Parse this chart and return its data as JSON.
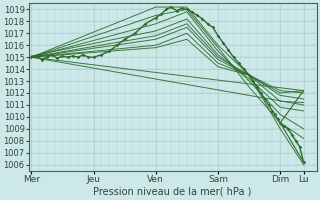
{
  "xlabel": "Pression niveau de la mer( hPa )",
  "bg_color": "#cce8e8",
  "grid_color": "#aacccc",
  "line_color": "#2d6b2d",
  "x_ticks": [
    0,
    48,
    96,
    144,
    192,
    210
  ],
  "x_tick_labels": [
    "Mer",
    "Jeu",
    "Ven",
    "Sam",
    "Dim",
    "Lu"
  ],
  "ylim": [
    1005.5,
    1019.5
  ],
  "yticks": [
    1006,
    1007,
    1008,
    1009,
    1010,
    1011,
    1012,
    1013,
    1014,
    1015,
    1016,
    1017,
    1018,
    1019
  ],
  "xlim": [
    -2,
    220
  ],
  "lines": [
    {
      "x": [
        0,
        210
      ],
      "y": [
        1015.0,
        1012.2
      ]
    },
    {
      "x": [
        0,
        210
      ],
      "y": [
        1015.0,
        1011.0
      ]
    },
    {
      "x": [
        0,
        96,
        120,
        144,
        168,
        192,
        210
      ],
      "y": [
        1015.0,
        1019.2,
        1019.2,
        1016.0,
        1013.5,
        1009.0,
        1006.0
      ]
    },
    {
      "x": [
        0,
        96,
        120,
        144,
        168,
        192,
        210
      ],
      "y": [
        1015.0,
        1018.5,
        1019.0,
        1015.8,
        1012.5,
        1009.5,
        1008.2
      ]
    },
    {
      "x": [
        0,
        96,
        120,
        144,
        168,
        192,
        210
      ],
      "y": [
        1015.0,
        1017.8,
        1018.8,
        1015.5,
        1013.0,
        1010.2,
        1009.0
      ]
    },
    {
      "x": [
        0,
        96,
        120,
        144,
        168,
        192,
        210
      ],
      "y": [
        1015.1,
        1017.2,
        1018.2,
        1015.2,
        1013.2,
        1010.8,
        1010.5
      ]
    },
    {
      "x": [
        0,
        96,
        120,
        144,
        168,
        192,
        210
      ],
      "y": [
        1015.0,
        1016.8,
        1017.8,
        1015.0,
        1013.5,
        1011.3,
        1011.2
      ]
    },
    {
      "x": [
        0,
        96,
        120,
        144,
        168,
        192,
        210
      ],
      "y": [
        1015.0,
        1016.5,
        1017.5,
        1014.8,
        1013.5,
        1011.8,
        1011.5
      ]
    },
    {
      "x": [
        0,
        96,
        120,
        144,
        168,
        192,
        210
      ],
      "y": [
        1015.0,
        1016.0,
        1017.0,
        1014.5,
        1013.5,
        1012.0,
        1012.2
      ]
    },
    {
      "x": [
        0,
        96,
        120,
        144,
        168,
        192,
        210
      ],
      "y": [
        1015.0,
        1015.8,
        1016.5,
        1014.2,
        1013.5,
        1012.2,
        1012.0
      ]
    }
  ],
  "squiggle_x": [
    0,
    4,
    8,
    12,
    16,
    20,
    24,
    28,
    32,
    36,
    40,
    44,
    48,
    54,
    60,
    66,
    72,
    80,
    88,
    96,
    100,
    104,
    108,
    112,
    116,
    120,
    124,
    128,
    132,
    136,
    140,
    144,
    148,
    152,
    156,
    160,
    164,
    168,
    171,
    174,
    177,
    180,
    183,
    186,
    188,
    190,
    192,
    195,
    198,
    201,
    204,
    207,
    210
  ],
  "squiggle_y": [
    1015.0,
    1015.1,
    1014.8,
    1015.0,
    1015.2,
    1014.9,
    1015.1,
    1015.0,
    1015.1,
    1015.0,
    1015.2,
    1015.0,
    1015.0,
    1015.2,
    1015.5,
    1016.0,
    1016.5,
    1017.0,
    1017.8,
    1018.3,
    1018.6,
    1019.0,
    1019.2,
    1018.9,
    1019.1,
    1019.0,
    1018.8,
    1018.5,
    1018.2,
    1017.8,
    1017.5,
    1016.8,
    1016.2,
    1015.6,
    1015.0,
    1014.5,
    1014.0,
    1013.5,
    1013.0,
    1012.5,
    1012.0,
    1011.5,
    1011.0,
    1010.5,
    1010.2,
    1009.8,
    1009.5,
    1009.2,
    1009.0,
    1008.5,
    1008.0,
    1007.5,
    1006.2
  ]
}
